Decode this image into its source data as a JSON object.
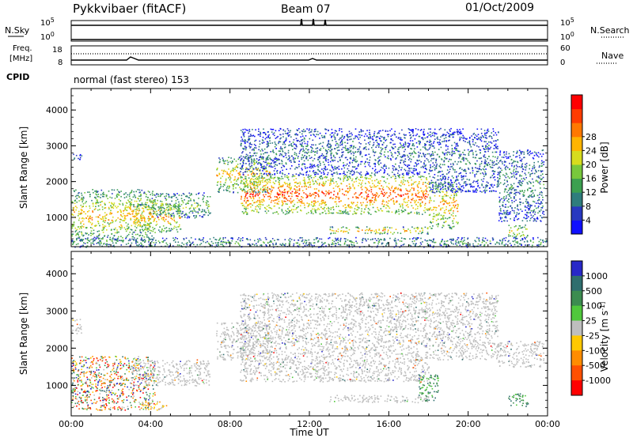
{
  "header": {
    "title": "Pykkvibaer (fitACF)",
    "beam": "Beam 07",
    "date": "01/Oct/2009"
  },
  "nsky_panel": {
    "left_label": "N.Sky",
    "right_label": "N.Search",
    "left_ticks": [
      "10^5",
      "10^0"
    ],
    "right_ticks": [
      "10^5",
      "10^0"
    ]
  },
  "freq_panel": {
    "left_label_line1": "Freq.",
    "left_label_line2": "[MHz]",
    "right_label": "Nave",
    "left_ticks": [
      "18",
      "8"
    ],
    "right_ticks": [
      "60",
      "0"
    ]
  },
  "cpid": {
    "label": "CPID",
    "text": "normal (fast stereo) 153"
  },
  "chart_data": [
    {
      "type": "heatmap",
      "parameter": "Power",
      "ylabel": "Slant Range [km]",
      "ylim": [
        180,
        4600
      ],
      "yticks": [
        1000,
        2000,
        3000,
        4000
      ],
      "xlim": [
        0,
        24
      ],
      "colorbar": {
        "label": "Power [dB]",
        "ticks": [
          "4",
          "8",
          "12",
          "16",
          "20",
          "24",
          "28"
        ],
        "colors": [
          "#1010ff",
          "#2838c0",
          "#2f7d7d",
          "#3ca050",
          "#78c83c",
          "#d7dc1e",
          "#ffb400",
          "#ff7800",
          "#ff3c00",
          "#ff0000"
        ]
      },
      "regions": [
        {
          "t": [
            0.0,
            0.5
          ],
          "r": [
            2600,
            2800
          ],
          "level": 0.2
        },
        {
          "t": [
            0.0,
            4.2
          ],
          "r": [
            350,
            1800
          ],
          "level": 0.65
        },
        {
          "t": [
            3.0,
            5.5
          ],
          "r": [
            600,
            1400
          ],
          "level": 0.7
        },
        {
          "t": [
            4.0,
            7.0
          ],
          "r": [
            1000,
            1700
          ],
          "level": 0.45
        },
        {
          "t": [
            7.3,
            10.0
          ],
          "r": [
            1700,
            2700
          ],
          "level": 0.65
        },
        {
          "t": [
            8.5,
            18.0
          ],
          "r": [
            1100,
            2200
          ],
          "level": 0.85
        },
        {
          "t": [
            8.5,
            18.0
          ],
          "r": [
            2200,
            3500
          ],
          "level": 0.25
        },
        {
          "t": [
            13.0,
            18.0
          ],
          "r": [
            550,
            750
          ],
          "level": 0.7
        },
        {
          "t": [
            18.0,
            19.5
          ],
          "r": [
            700,
            2000
          ],
          "level": 0.7
        },
        {
          "t": [
            18.0,
            21.5
          ],
          "r": [
            1700,
            3500
          ],
          "level": 0.25
        },
        {
          "t": [
            21.5,
            23.8
          ],
          "r": [
            900,
            2900
          ],
          "level": 0.3
        },
        {
          "t": [
            22.0,
            23.0
          ],
          "r": [
            450,
            800
          ],
          "level": 0.6
        },
        {
          "t": [
            0.0,
            24.0
          ],
          "r": [
            180,
            450
          ],
          "level": 0.35
        }
      ]
    },
    {
      "type": "heatmap",
      "parameter": "Velocity",
      "ylabel": "Slant Range [km]",
      "xlabel": "Time UT",
      "ylim": [
        180,
        4600
      ],
      "yticks": [
        1000,
        2000,
        3000,
        4000
      ],
      "xlim": [
        0,
        24
      ],
      "xticks": [
        "00:00",
        "04:00",
        "08:00",
        "12:00",
        "16:00",
        "20:00",
        "00:00"
      ],
      "colorbar": {
        "label": "Velocity [m s^-1]",
        "ticks": [
          "1000",
          "500",
          "100",
          "25",
          "-25",
          "-100",
          "-500",
          "-1000"
        ],
        "colors": [
          "#2828c8",
          "#2f6e6e",
          "#3c8c50",
          "#50c83c",
          "#bebebe",
          "#ffc800",
          "#ff8c00",
          "#ff5000",
          "#ff0000"
        ]
      },
      "regions": [
        {
          "t": [
            0.0,
            0.5
          ],
          "r": [
            2400,
            2800
          ],
          "v": "grey"
        },
        {
          "t": [
            0.0,
            4.2
          ],
          "r": [
            350,
            1800
          ],
          "v": "mixed"
        },
        {
          "t": [
            3.0,
            7.0
          ],
          "r": [
            1000,
            1700
          ],
          "v": "grey"
        },
        {
          "t": [
            3.5,
            4.8
          ],
          "r": [
            350,
            600
          ],
          "v": "orange"
        },
        {
          "t": [
            7.3,
            10.0
          ],
          "r": [
            1700,
            2700
          ],
          "v": "grey"
        },
        {
          "t": [
            8.5,
            18.0
          ],
          "r": [
            1100,
            3500
          ],
          "v": "grey"
        },
        {
          "t": [
            13.0,
            18.0
          ],
          "r": [
            550,
            750
          ],
          "v": "grey"
        },
        {
          "t": [
            17.5,
            18.5
          ],
          "r": [
            600,
            1300
          ],
          "v": "teal"
        },
        {
          "t": [
            18.0,
            21.5
          ],
          "r": [
            1700,
            3500
          ],
          "v": "grey"
        },
        {
          "t": [
            21.5,
            23.8
          ],
          "r": [
            1500,
            2200
          ],
          "v": "grey"
        },
        {
          "t": [
            22.0,
            23.0
          ],
          "r": [
            450,
            800
          ],
          "v": "teal"
        }
      ]
    }
  ],
  "colors": {
    "frame": "#000000",
    "grey_scatter": "#bebebe"
  }
}
